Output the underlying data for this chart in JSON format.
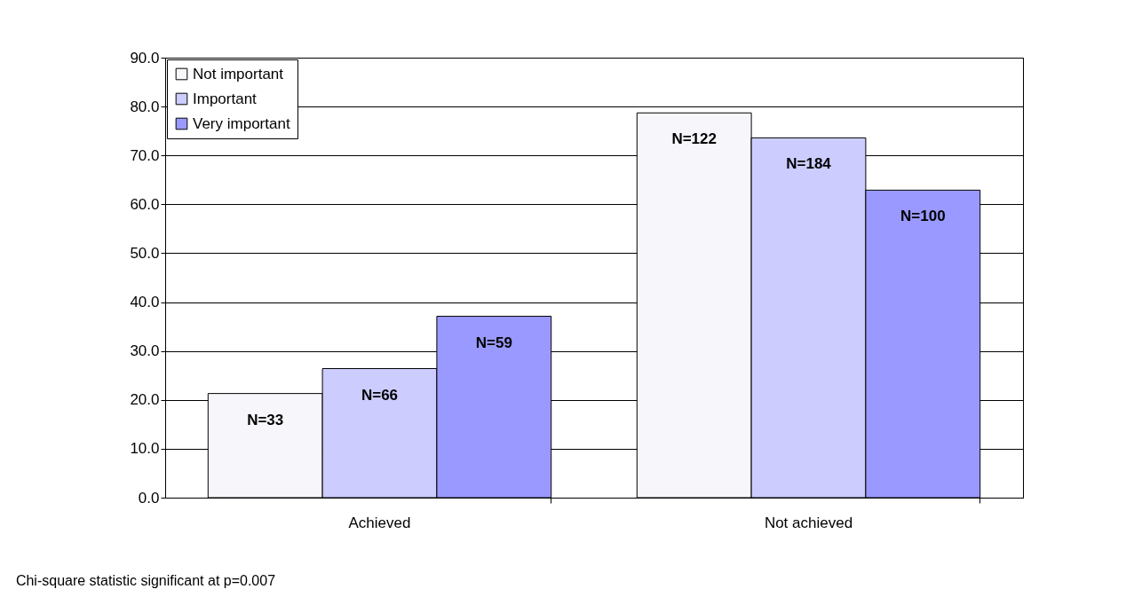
{
  "chart_data": {
    "type": "bar",
    "categories": [
      "Achieved",
      "Not achieved"
    ],
    "series": [
      {
        "name": "Not important",
        "color": "#f6f6fb",
        "values": [
          21.3,
          78.7
        ]
      },
      {
        "name": "Important",
        "color": "#ccccff",
        "values": [
          26.4,
          73.6
        ]
      },
      {
        "name": "Very important",
        "color": "#9999ff",
        "values": [
          37.1,
          62.9
        ]
      }
    ],
    "ylim": [
      0,
      90
    ],
    "yticks": [
      {
        "value": 0,
        "label": "0.0"
      },
      {
        "value": 10,
        "label": "10.0"
      },
      {
        "value": 20,
        "label": "20.0"
      },
      {
        "value": 30,
        "label": "30.0"
      },
      {
        "value": 40,
        "label": "40.0"
      },
      {
        "value": 50,
        "label": "50.0"
      },
      {
        "value": 60,
        "label": "60.0"
      },
      {
        "value": 70,
        "label": "70.0"
      },
      {
        "value": 80,
        "label": "80.0"
      },
      {
        "value": 90,
        "label": "90.0"
      }
    ],
    "grid": "y",
    "legend": "top left",
    "annotations": [
      "Chi-square statistic significant at p=0.007",
      "N=33",
      "N=66",
      "N=59",
      "N=122",
      "N=184",
      "N=100"
    ]
  }
}
